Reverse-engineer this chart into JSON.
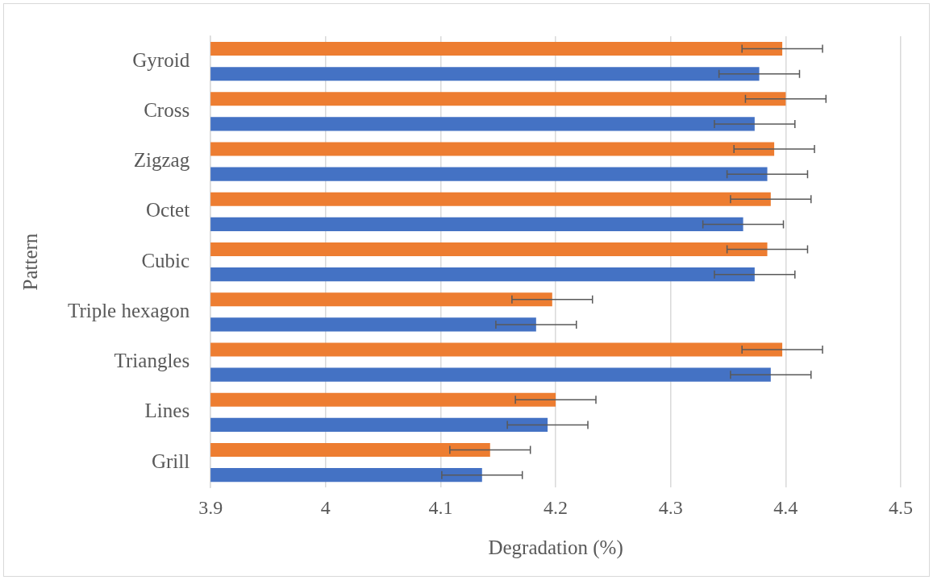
{
  "chart_data": {
    "type": "bar",
    "orientation": "horizontal",
    "xlabel": "Degradation (%)",
    "ylabel": "Pattern",
    "categories": [
      "Gyroid",
      "Cross",
      "Zigzag",
      "Octet",
      "Cubic",
      "Triple hexagon",
      "Triangles",
      "Lines",
      "Grill"
    ],
    "series": [
      {
        "color": "#ed7d31",
        "values": [
          4.397,
          4.4,
          4.39,
          4.387,
          4.384,
          4.197,
          4.397,
          4.2,
          4.143
        ],
        "errors": [
          0.035,
          0.035,
          0.035,
          0.035,
          0.035,
          0.035,
          0.035,
          0.035,
          0.035
        ]
      },
      {
        "color": "#4472c4",
        "values": [
          4.377,
          4.373,
          4.384,
          4.363,
          4.373,
          4.183,
          4.387,
          4.193,
          4.136
        ],
        "errors": [
          0.035,
          0.035,
          0.035,
          0.035,
          0.035,
          0.035,
          0.035,
          0.035,
          0.035
        ]
      }
    ],
    "xlim": [
      3.9,
      4.5
    ],
    "xticks": [
      3.9,
      4,
      4.1,
      4.2,
      4.3,
      4.4,
      4.5
    ],
    "grid": "x",
    "legend": false
  }
}
